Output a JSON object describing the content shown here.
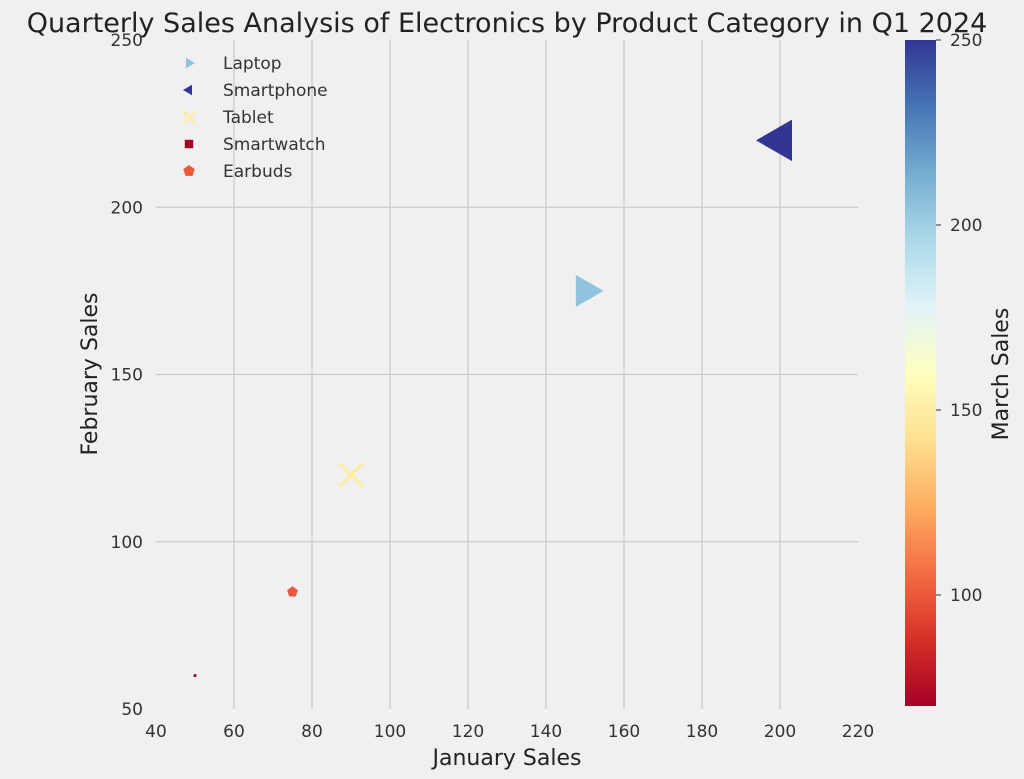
{
  "chart_data": {
    "type": "scatter",
    "title": "Quarterly Sales Analysis of Electronics by Product Category in Q1 2024",
    "xlabel": "January Sales",
    "ylabel": "February Sales",
    "colorbar_label": "March Sales",
    "xlim": [
      40,
      220
    ],
    "ylim": [
      50,
      250
    ],
    "xticks": [
      40,
      60,
      80,
      100,
      120,
      140,
      160,
      180,
      200,
      220
    ],
    "yticks": [
      50,
      100,
      150,
      200,
      250
    ],
    "colorbar_range": [
      70,
      250
    ],
    "colorbar_ticks": [
      100,
      150,
      200,
      250
    ],
    "colormap": "RdYlBu",
    "grid": true,
    "legend_position": "top-left",
    "series": [
      {
        "name": "Laptop",
        "marker": "triangle-right",
        "x": 150,
        "y": 175,
        "march": 205
      },
      {
        "name": "Smartphone",
        "marker": "triangle-left",
        "x": 200,
        "y": 220,
        "march": 250
      },
      {
        "name": "Tablet",
        "marker": "x",
        "x": 90,
        "y": 120,
        "march": 150
      },
      {
        "name": "Smartwatch",
        "marker": "square",
        "x": 50,
        "y": 60,
        "march": 70
      },
      {
        "name": "Earbuds",
        "marker": "pentagon",
        "x": 75,
        "y": 85,
        "march": 100
      }
    ]
  }
}
